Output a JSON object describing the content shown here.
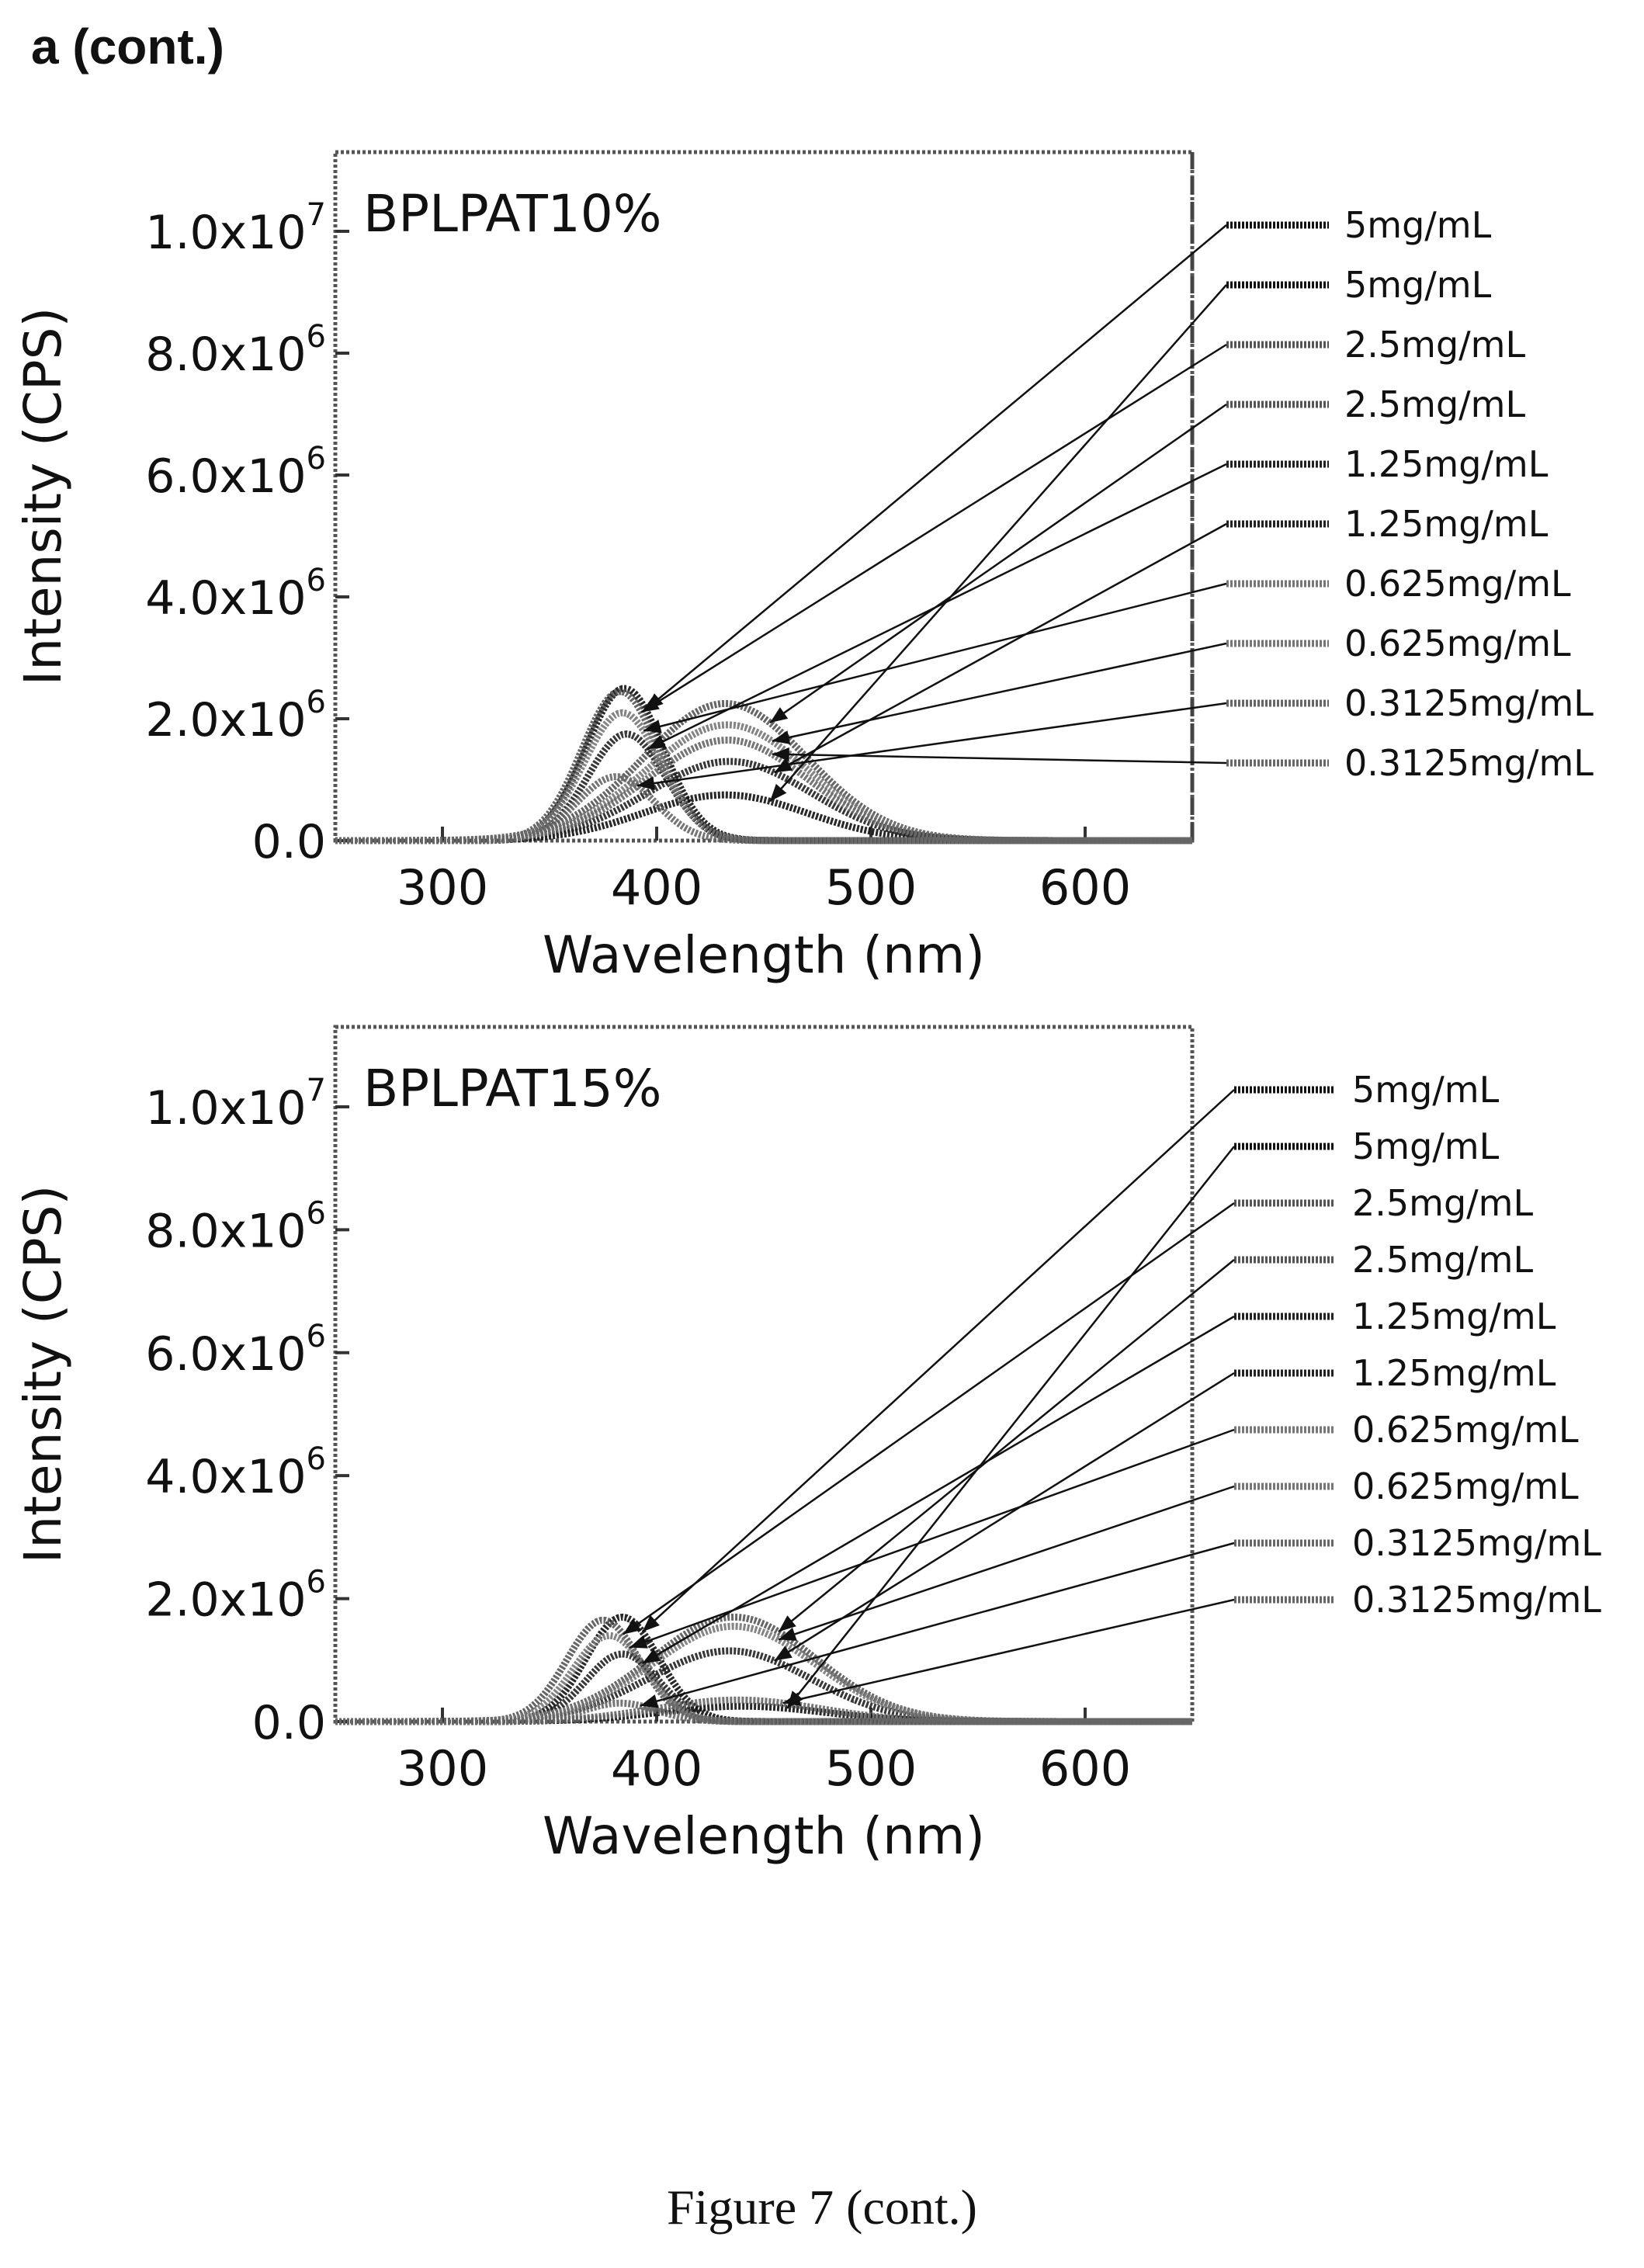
{
  "panel_label": "a (cont.)",
  "figure_caption": "Figure 7 (cont.)",
  "chart_data": [
    {
      "type": "line",
      "title": "BPLPAT10%",
      "xlabel": "Wavelength (nm)",
      "ylabel": "Intensity (CPS)",
      "xlim": [
        250,
        650
      ],
      "ylim": [
        0,
        11300000
      ],
      "x_ticks": [
        300,
        400,
        500,
        600
      ],
      "y_ticks": [
        {
          "value": 0,
          "mant": "0.0",
          "exp": ""
        },
        {
          "value": 2000000,
          "mant": "2.0x10",
          "exp": "6"
        },
        {
          "value": 4000000,
          "mant": "4.0x10",
          "exp": "6"
        },
        {
          "value": 6000000,
          "mant": "6.0x10",
          "exp": "6"
        },
        {
          "value": 8000000,
          "mant": "8.0x10",
          "exp": "6"
        },
        {
          "value": 10000000,
          "mant": "1.0x10",
          "exp": "7"
        }
      ],
      "legend_position": "right-outside",
      "series": [
        {
          "name": "5mg/mL",
          "color": "#111111",
          "peak_x": 385,
          "peak_y": 2500000,
          "width": 18
        },
        {
          "name": "5mg/mL",
          "color": "#111111",
          "peak_x": 432,
          "peak_y": 750000,
          "width": 38
        },
        {
          "name": "2.5mg/mL",
          "color": "#555555",
          "peak_x": 383,
          "peak_y": 2450000,
          "width": 18
        },
        {
          "name": "2.5mg/mL",
          "color": "#555555",
          "peak_x": 432,
          "peak_y": 2250000,
          "width": 38
        },
        {
          "name": "1.25mg/mL",
          "color": "#222222",
          "peak_x": 386,
          "peak_y": 1750000,
          "width": 18
        },
        {
          "name": "1.25mg/mL",
          "color": "#222222",
          "peak_x": 434,
          "peak_y": 1300000,
          "width": 38
        },
        {
          "name": "0.625mg/mL",
          "color": "#777777",
          "peak_x": 384,
          "peak_y": 2100000,
          "width": 18
        },
        {
          "name": "0.625mg/mL",
          "color": "#777777",
          "peak_x": 433,
          "peak_y": 1900000,
          "width": 38
        },
        {
          "name": "0.3125mg/mL",
          "color": "#666666",
          "peak_x": 381,
          "peak_y": 1050000,
          "width": 18
        },
        {
          "name": "0.3125mg/mL",
          "color": "#666666",
          "peak_x": 433,
          "peak_y": 1650000,
          "width": 38
        }
      ]
    },
    {
      "type": "line",
      "title": "BPLPAT15%",
      "xlabel": "Wavelength (nm)",
      "ylabel": "Intensity (CPS)",
      "xlim": [
        250,
        650
      ],
      "ylim": [
        0,
        11300000
      ],
      "x_ticks": [
        300,
        400,
        500,
        600
      ],
      "y_ticks": [
        {
          "value": 0,
          "mant": "0.0",
          "exp": ""
        },
        {
          "value": 2000000,
          "mant": "2.0x10",
          "exp": "6"
        },
        {
          "value": 4000000,
          "mant": "4.0x10",
          "exp": "6"
        },
        {
          "value": 6000000,
          "mant": "6.0x10",
          "exp": "6"
        },
        {
          "value": 8000000,
          "mant": "8.0x10",
          "exp": "6"
        },
        {
          "value": 10000000,
          "mant": "1.0x10",
          "exp": "7"
        }
      ],
      "legend_position": "right-outside",
      "series": [
        {
          "name": "5mg/mL",
          "color": "#111111",
          "peak_x": 384,
          "peak_y": 1700000,
          "width": 17
        },
        {
          "name": "5mg/mL",
          "color": "#111111",
          "peak_x": 440,
          "peak_y": 250000,
          "width": 38
        },
        {
          "name": "2.5mg/mL",
          "color": "#555555",
          "peak_x": 375,
          "peak_y": 1650000,
          "width": 17
        },
        {
          "name": "2.5mg/mL",
          "color": "#555555",
          "peak_x": 436,
          "peak_y": 1700000,
          "width": 38
        },
        {
          "name": "1.25mg/mL",
          "color": "#222222",
          "peak_x": 384,
          "peak_y": 1100000,
          "width": 17
        },
        {
          "name": "1.25mg/mL",
          "color": "#222222",
          "peak_x": 434,
          "peak_y": 1150000,
          "width": 38
        },
        {
          "name": "0.625mg/mL",
          "color": "#777777",
          "peak_x": 378,
          "peak_y": 1400000,
          "width": 17
        },
        {
          "name": "0.625mg/mL",
          "color": "#777777",
          "peak_x": 436,
          "peak_y": 1550000,
          "width": 38
        },
        {
          "name": "0.3125mg/mL",
          "color": "#666666",
          "peak_x": 383,
          "peak_y": 300000,
          "width": 17
        },
        {
          "name": "0.3125mg/mL",
          "color": "#666666",
          "peak_x": 438,
          "peak_y": 350000,
          "width": 38
        }
      ]
    }
  ]
}
